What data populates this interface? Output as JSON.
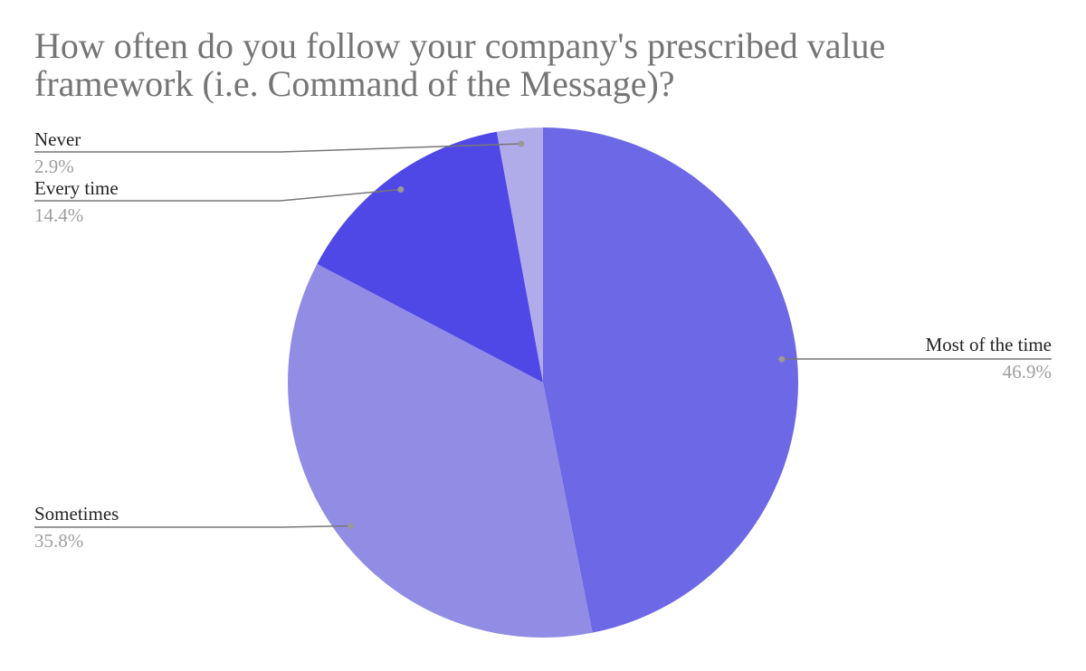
{
  "chart_data": {
    "type": "pie",
    "title": "How often do you follow your company's prescribed value framework (i.e. Command of the Message)?",
    "categories": [
      "Most of the time",
      "Sometimes",
      "Every time",
      "Never"
    ],
    "values": [
      46.9,
      35.8,
      14.4,
      2.9
    ],
    "value_labels": [
      "46.9%",
      "35.8%",
      "14.4%",
      "2.9%"
    ],
    "colors": [
      "#6c68e6",
      "#918de5",
      "#4f48e6",
      "#b0ace9"
    ]
  }
}
